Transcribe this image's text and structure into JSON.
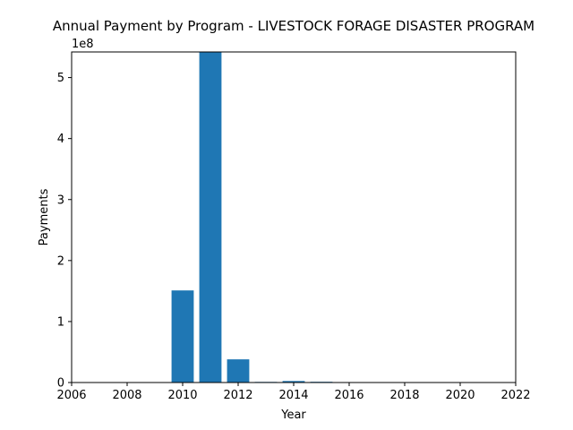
{
  "chart_data": {
    "type": "bar",
    "title": "Annual Payment by Program - LIVESTOCK FORAGE DISASTER PROGRAM",
    "xlabel": "Year",
    "ylabel": "Payments",
    "y_offset_text": "1e8",
    "xlim": [
      2006,
      2022
    ],
    "ylim": [
      0,
      5.42
    ],
    "y_scale": 100000000,
    "x_ticks": [
      "2006",
      "2008",
      "2010",
      "2012",
      "2014",
      "2016",
      "2018",
      "2020",
      "2022"
    ],
    "y_ticks": [
      "0",
      "1",
      "2",
      "3",
      "4",
      "5"
    ],
    "grid": false,
    "legend": "none",
    "bar_color": "#1f77b4",
    "x": [
      2010,
      2011,
      2012,
      2013,
      2014,
      2015
    ],
    "values": [
      151000000,
      542000000,
      38000000,
      1000000,
      2500000,
      1200000
    ]
  }
}
